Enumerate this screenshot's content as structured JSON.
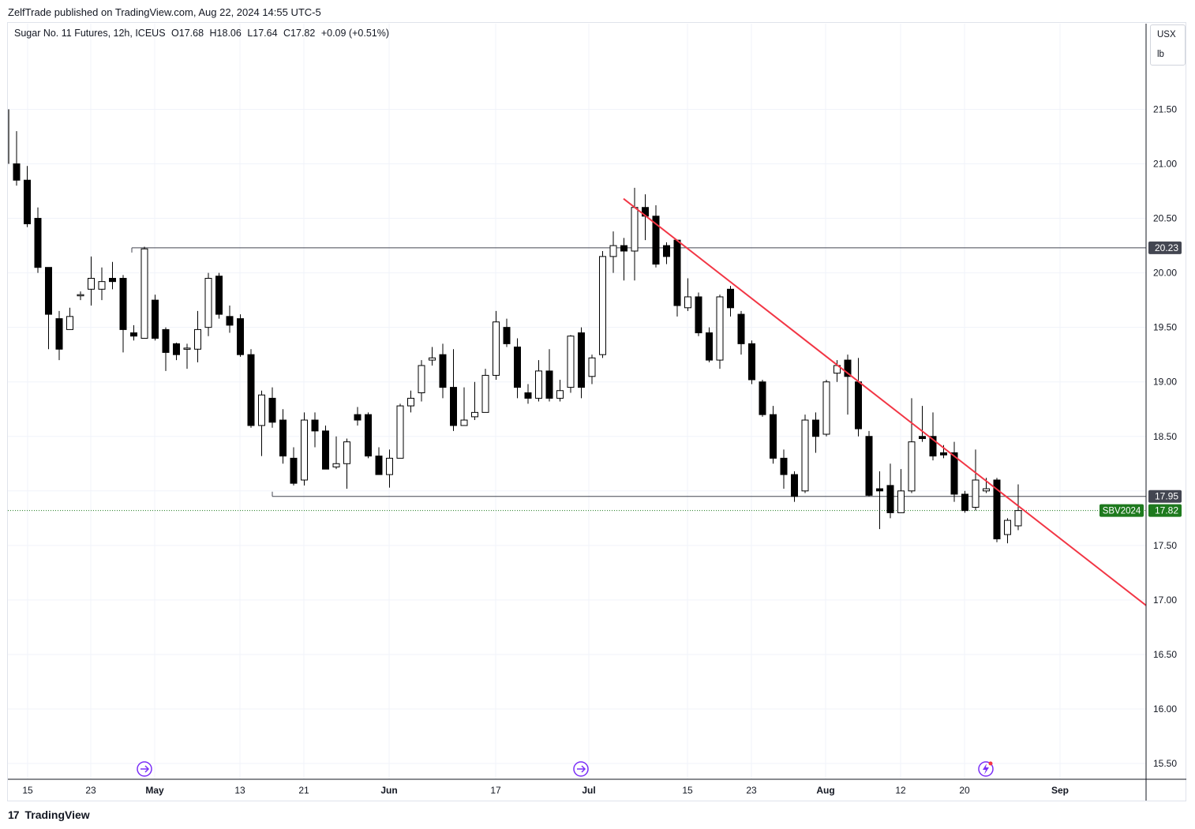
{
  "header": {
    "published": "ZelfTrade published on TradingView.com, Aug 22, 2024 14:55 UTC-5"
  },
  "legend": {
    "symbol": "Sugar No. 11 Futures, 12h, ICEUS",
    "open": "O17.68",
    "high": "H18.06",
    "low": "L17.64",
    "close": "C17.82",
    "change": "+0.09 (+0.51%)"
  },
  "units": {
    "currency": "USX",
    "unit": "lb"
  },
  "price_scale": {
    "labels": [
      "21.50",
      "21.00",
      "20.50",
      "20.00",
      "19.50",
      "19.00",
      "18.50",
      "18.00",
      "17.50",
      "17.00",
      "16.50",
      "16.00",
      "15.50"
    ]
  },
  "time_scale": {
    "labels": [
      "15",
      "23",
      "May",
      "13",
      "21",
      "Jun",
      "17",
      "Jul",
      "15",
      "23",
      "Aug",
      "12",
      "20",
      "Sep"
    ]
  },
  "price_tags": {
    "resistance": "20.23",
    "support": "17.95",
    "symbol_tag": "SBV2024",
    "last": "17.82"
  },
  "colors": {
    "up_body": "#ffffff",
    "down_body": "#000000",
    "wick": "#000000",
    "trendline": "#f23645",
    "last_price": "#1e7a1e",
    "level_tag": "#434651",
    "event_icon": "#7b2ff7"
  },
  "footer": {
    "logo": "17",
    "brand": "TradingView"
  },
  "chart_data": {
    "type": "candlestick",
    "title": "Sugar No. 11 Futures, 12h, ICEUS",
    "xlabel": "",
    "ylabel": "",
    "ylim": [
      15.4,
      21.7
    ],
    "grid": true,
    "candles": [
      [
        21.0,
        20.85,
        21.3,
        20.8
      ],
      [
        20.85,
        20.45,
        20.98,
        20.42
      ],
      [
        20.5,
        20.05,
        20.6,
        20.0
      ],
      [
        20.05,
        19.62,
        20.05,
        19.3
      ],
      [
        19.58,
        19.3,
        19.65,
        19.2
      ],
      [
        19.48,
        19.6,
        19.68,
        19.48
      ],
      [
        19.8,
        19.8,
        19.83,
        19.75
      ],
      [
        19.85,
        19.95,
        20.15,
        19.7
      ],
      [
        19.85,
        19.92,
        20.05,
        19.75
      ],
      [
        19.95,
        19.92,
        20.1,
        19.85
      ],
      [
        19.95,
        19.48,
        19.98,
        19.27
      ],
      [
        19.45,
        19.42,
        19.52,
        19.38
      ],
      [
        19.4,
        20.22,
        20.24,
        19.4
      ],
      [
        19.75,
        19.4,
        19.8,
        19.38
      ],
      [
        19.48,
        19.27,
        19.5,
        19.1
      ],
      [
        19.35,
        19.25,
        19.36,
        19.2
      ],
      [
        19.3,
        19.31,
        19.35,
        19.12
      ],
      [
        19.3,
        19.48,
        19.65,
        19.18
      ],
      [
        19.5,
        19.95,
        20.0,
        19.42
      ],
      [
        19.97,
        19.62,
        20.0,
        19.58
      ],
      [
        19.6,
        19.52,
        19.7,
        19.45
      ],
      [
        19.58,
        19.25,
        19.62,
        19.23
      ],
      [
        19.25,
        18.6,
        19.3,
        18.58
      ],
      [
        18.6,
        18.88,
        18.92,
        18.32
      ],
      [
        18.85,
        18.63,
        18.95,
        18.58
      ],
      [
        18.65,
        18.32,
        18.75,
        18.25
      ],
      [
        18.3,
        18.07,
        18.4,
        18.05
      ],
      [
        18.1,
        18.65,
        18.72,
        18.05
      ],
      [
        18.65,
        18.55,
        18.72,
        18.4
      ],
      [
        18.55,
        18.2,
        18.6,
        18.2
      ],
      [
        18.22,
        18.25,
        18.5,
        18.2
      ],
      [
        18.25,
        18.45,
        18.48,
        18.02
      ],
      [
        18.7,
        18.65,
        18.77,
        18.6
      ],
      [
        18.7,
        18.32,
        18.72,
        18.3
      ],
      [
        18.32,
        18.15,
        18.4,
        18.15
      ],
      [
        18.15,
        18.3,
        18.38,
        18.03
      ],
      [
        18.3,
        18.78,
        18.8,
        18.3
      ],
      [
        18.78,
        18.85,
        18.92,
        18.72
      ],
      [
        18.9,
        19.15,
        19.2,
        18.82
      ],
      [
        19.2,
        19.22,
        19.32,
        19.15
      ],
      [
        19.25,
        18.95,
        19.35,
        18.85
      ],
      [
        18.95,
        18.6,
        19.3,
        18.55
      ],
      [
        18.6,
        18.65,
        18.95,
        18.6
      ],
      [
        18.68,
        18.72,
        19.0,
        18.65
      ],
      [
        18.72,
        19.06,
        19.12,
        18.72
      ],
      [
        19.06,
        19.55,
        19.65,
        19.02
      ],
      [
        19.5,
        19.35,
        19.58,
        19.32
      ],
      [
        19.32,
        18.95,
        19.4,
        18.85
      ],
      [
        18.9,
        18.85,
        18.98,
        18.8
      ],
      [
        18.85,
        19.1,
        19.2,
        18.82
      ],
      [
        19.1,
        18.85,
        19.3,
        18.82
      ],
      [
        18.85,
        18.92,
        19.02,
        18.82
      ],
      [
        18.95,
        19.42,
        19.43,
        18.9
      ],
      [
        19.45,
        18.95,
        19.5,
        18.85
      ],
      [
        19.05,
        19.22,
        19.25,
        18.98
      ],
      [
        19.25,
        20.15,
        20.2,
        19.22
      ],
      [
        20.15,
        20.25,
        20.38,
        20.0
      ],
      [
        20.25,
        20.2,
        20.32,
        19.93
      ],
      [
        20.2,
        20.6,
        20.78,
        19.93
      ],
      [
        20.6,
        20.52,
        20.72,
        20.3
      ],
      [
        20.52,
        20.08,
        20.62,
        20.05
      ],
      [
        20.25,
        20.15,
        20.28,
        20.08
      ],
      [
        20.3,
        19.7,
        20.3,
        19.6
      ],
      [
        19.68,
        19.78,
        19.95,
        19.65
      ],
      [
        19.78,
        19.45,
        19.82,
        19.42
      ],
      [
        19.45,
        19.2,
        19.5,
        19.18
      ],
      [
        19.2,
        19.78,
        19.8,
        19.12
      ],
      [
        19.85,
        19.68,
        19.88,
        19.6
      ],
      [
        19.62,
        19.35,
        19.65,
        19.25
      ],
      [
        19.35,
        19.02,
        19.38,
        18.98
      ],
      [
        19.0,
        18.7,
        19.02,
        18.68
      ],
      [
        18.7,
        18.3,
        18.78,
        18.25
      ],
      [
        18.3,
        18.15,
        18.38,
        18.02
      ],
      [
        18.15,
        17.95,
        18.18,
        17.9
      ],
      [
        18.0,
        18.65,
        18.7,
        17.98
      ],
      [
        18.65,
        18.5,
        18.72,
        18.35
      ],
      [
        18.52,
        19.0,
        19.02,
        18.5
      ],
      [
        19.08,
        19.15,
        19.2,
        19.0
      ],
      [
        19.2,
        19.05,
        19.25,
        18.7
      ],
      [
        19.0,
        18.57,
        19.22,
        18.5
      ],
      [
        18.5,
        17.96,
        18.55,
        17.95
      ],
      [
        18.02,
        18.0,
        18.18,
        17.65
      ],
      [
        18.05,
        17.8,
        18.25,
        17.75
      ],
      [
        17.8,
        18.0,
        18.2,
        17.8
      ],
      [
        18.0,
        18.45,
        18.85,
        17.98
      ],
      [
        18.5,
        18.48,
        18.78,
        18.45
      ],
      [
        18.5,
        18.32,
        18.72,
        18.28
      ],
      [
        18.35,
        18.33,
        18.42,
        18.3
      ],
      [
        18.35,
        17.97,
        18.45,
        17.9
      ],
      [
        17.97,
        17.82,
        18.0,
        17.8
      ],
      [
        17.85,
        18.1,
        18.38,
        17.82
      ],
      [
        18.0,
        18.02,
        18.12,
        17.98
      ],
      [
        18.1,
        17.56,
        18.12,
        17.53
      ],
      [
        17.6,
        17.73,
        17.75,
        17.52
      ],
      [
        17.68,
        17.82,
        18.06,
        17.64
      ]
    ],
    "trendline": {
      "from": [
        "Jul 4",
        20.68
      ],
      "to": [
        "Aug 30",
        16.95
      ]
    },
    "levels": [
      {
        "price": 20.23,
        "from": "Apr 27",
        "label": "20.23"
      },
      {
        "price": 17.95,
        "from": "May 17",
        "label": "17.95"
      }
    ],
    "last_price": 17.82
  }
}
